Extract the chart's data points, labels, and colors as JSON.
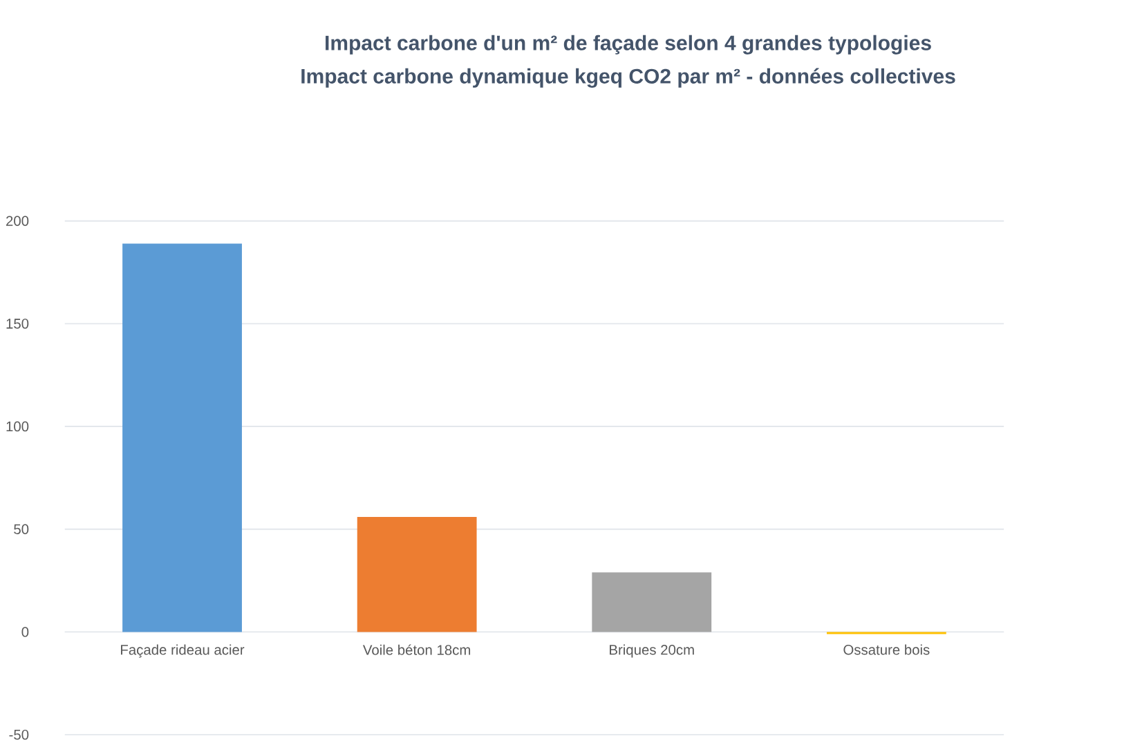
{
  "chart_data": {
    "type": "bar",
    "title": "Impact carbone d'un m² de façade selon 4 grandes typologies",
    "subtitle": "Impact carbone dynamique kgeq CO2 par m² - données collectives",
    "categories": [
      "Façade rideau acier",
      "Voile béton 18cm",
      "Briques 20cm",
      "Ossature bois"
    ],
    "values": [
      189,
      56,
      29,
      -1
    ],
    "colors": [
      "#5b9bd5",
      "#ed7d31",
      "#a5a5a5",
      "#ffc000"
    ],
    "ylim": [
      -50,
      200
    ],
    "yticks": [
      -50,
      0,
      50,
      100,
      150,
      200
    ],
    "grid": "y"
  }
}
